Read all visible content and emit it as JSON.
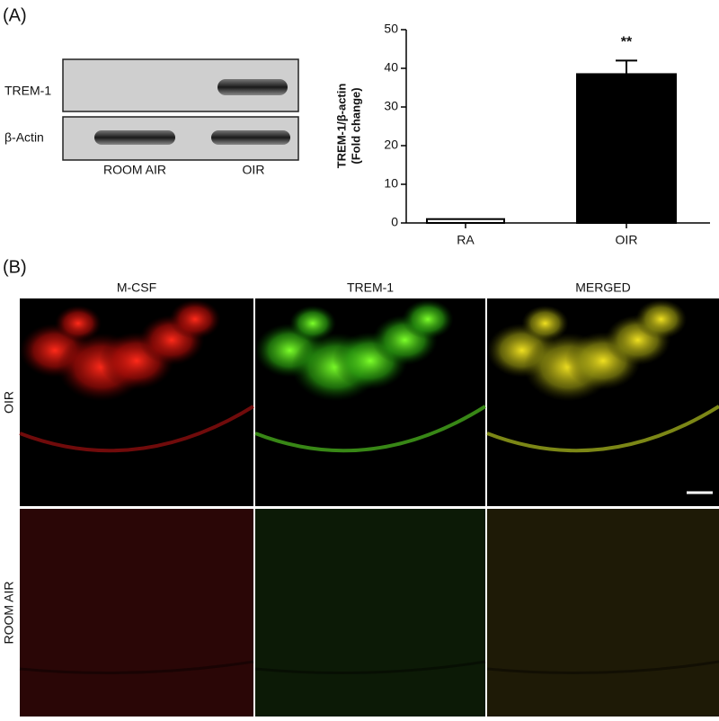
{
  "panel_a": {
    "label": "(A)",
    "blot_rows": [
      "TREM-1",
      "β-Actin"
    ],
    "blot_lanes": [
      "ROOM AIR",
      "OIR"
    ]
  },
  "chart_data": {
    "type": "bar",
    "ylabel": [
      "TREM-1/β-actin",
      "(Fold change)"
    ],
    "categories": [
      "RA",
      "OIR"
    ],
    "values": [
      1,
      38.5
    ],
    "errors": [
      0,
      3.5
    ],
    "colors": [
      "#ffffff",
      "#000000"
    ],
    "value_annotations": [
      null,
      "**"
    ],
    "ylim": [
      0,
      50
    ],
    "yticks": [
      0,
      10,
      20,
      30,
      40,
      50
    ]
  },
  "panel_b": {
    "label": "(B)",
    "columns": [
      "M-CSF",
      "TREM-1",
      "MERGED"
    ],
    "rows": [
      "OIR",
      "ROOM AIR"
    ]
  }
}
